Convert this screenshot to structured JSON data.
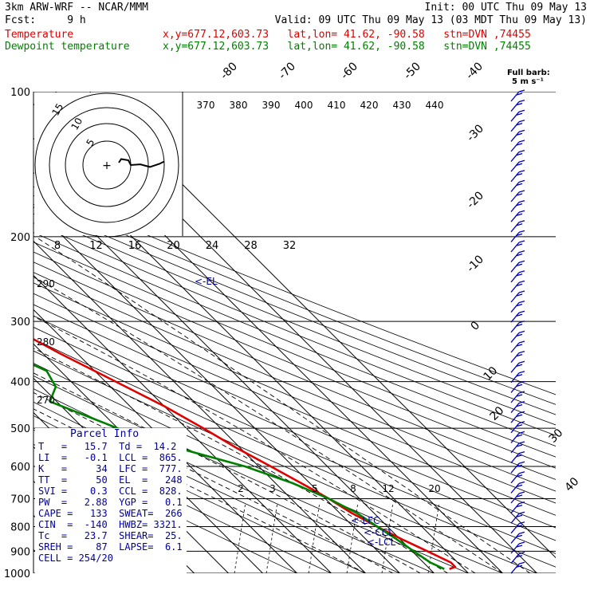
{
  "header": {
    "line1_left": "3km ARW-WRF -- NCAR/MMM",
    "line1_right": "Init: 00 UTC Thu 09 May 13",
    "line2_left": "Fcst:     9 h",
    "line2_right": "Valid: 09 UTC Thu 09 May 13 (03 MDT Thu 09 May 13)",
    "temp_label": "Temperature",
    "temp_info": "x,y=677.12,603.73   lat,lon= 41.62, -90.58   stn=DVN ,74455",
    "dew_label": "Dewpoint temperature",
    "dew_info": "x,y=677.12,603.73   lat,lon= 41.62, -90.58   stn=DVN ,74455"
  },
  "colors": {
    "temperature": "#e00000",
    "dewpoint": "#008000",
    "isobar": "#000000",
    "skew_isotherm": "#000000",
    "parcel_text": "#0000a0",
    "barbs": "#0000c0",
    "hodograph": "#000000"
  },
  "chart_data": {
    "type": "skew-t",
    "pressure_levels": [
      100,
      200,
      300,
      400,
      500,
      600,
      700,
      800,
      900,
      1000
    ],
    "temperature_ticks": [
      -80,
      -70,
      -60,
      -50,
      -40,
      -30,
      -20,
      -10,
      0,
      10,
      20,
      30,
      40
    ],
    "theta_e_labels": [
      370,
      380,
      390,
      400,
      410,
      420,
      430,
      440
    ],
    "side_theta_labels": [
      290,
      280,
      270
    ],
    "mixing_ratio_labels": [
      "2",
      "3",
      "5",
      "8",
      "12",
      "20"
    ],
    "wind_speed_ticks": [
      "8",
      "12",
      "16",
      "20",
      "24",
      "28",
      "32"
    ],
    "wind_speed_units": "kts",
    "barb_legend": "Full barb:\n5 m s⁻¹",
    "hodograph_rings": [
      "15",
      "10",
      "5"
    ],
    "level_markers": [
      "<-EL",
      "<-LFC",
      "<-CCL",
      "<-LCL"
    ],
    "temperature_profile": [
      {
        "p": 100,
        "t": -58.5
      },
      {
        "p": 120,
        "t": -59.5
      },
      {
        "p": 140,
        "t": -61
      },
      {
        "p": 160,
        "t": -60.5
      },
      {
        "p": 180,
        "t": -57
      },
      {
        "p": 200,
        "t": -55
      },
      {
        "p": 220,
        "t": -54.5
      },
      {
        "p": 250,
        "t": -50
      },
      {
        "p": 300,
        "t": -43
      },
      {
        "p": 350,
        "t": -35
      },
      {
        "p": 400,
        "t": -27
      },
      {
        "p": 450,
        "t": -20
      },
      {
        "p": 500,
        "t": -15
      },
      {
        "p": 550,
        "t": -11
      },
      {
        "p": 600,
        "t": -6.5
      },
      {
        "p": 650,
        "t": -2.5
      },
      {
        "p": 700,
        "t": 1
      },
      {
        "p": 750,
        "t": 3.5
      },
      {
        "p": 800,
        "t": 7
      },
      {
        "p": 850,
        "t": 10.5
      },
      {
        "p": 900,
        "t": 14.5
      },
      {
        "p": 950,
        "t": 18
      },
      {
        "p": 970,
        "t": 18
      },
      {
        "p": 980,
        "t": 15.7
      }
    ],
    "dewpoint_profile": [
      {
        "p": 100,
        "t": -87
      },
      {
        "p": 110,
        "t": -86
      },
      {
        "p": 130,
        "t": -80
      },
      {
        "p": 150,
        "t": -73
      },
      {
        "p": 170,
        "t": -71
      },
      {
        "p": 200,
        "t": -72
      },
      {
        "p": 230,
        "t": -73
      },
      {
        "p": 260,
        "t": -68
      },
      {
        "p": 300,
        "t": -60
      },
      {
        "p": 350,
        "t": -50
      },
      {
        "p": 380,
        "t": -44
      },
      {
        "p": 410,
        "t": -46
      },
      {
        "p": 440,
        "t": -52
      },
      {
        "p": 500,
        "t": -40
      },
      {
        "p": 550,
        "t": -28
      },
      {
        "p": 600,
        "t": -14
      },
      {
        "p": 650,
        "t": -5
      },
      {
        "p": 700,
        "t": 1
      },
      {
        "p": 750,
        "t": 5
      },
      {
        "p": 800,
        "t": 7
      },
      {
        "p": 850,
        "t": 9
      },
      {
        "p": 900,
        "t": 10.5
      },
      {
        "p": 950,
        "t": 12
      },
      {
        "p": 980,
        "t": 14.2
      }
    ],
    "hodograph_trace": [
      {
        "u": 5,
        "v": 1
      },
      {
        "u": 6,
        "v": 2.5
      },
      {
        "u": 9,
        "v": 2
      },
      {
        "u": 10,
        "v": 0
      },
      {
        "u": 14,
        "v": 0.3
      },
      {
        "u": 18,
        "v": -0.8
      },
      {
        "u": 22,
        "v": 0.5
      },
      {
        "u": 24,
        "v": 1.5
      }
    ]
  },
  "parcel": {
    "title": "Parcel Info",
    "lines": [
      "T   =   15.7  Td =  14.2",
      "LI  =   -0.1  LCL =  865.",
      "K   =     34  LFC =  777.",
      "TT  =     50  EL  =   248",
      "SVI =    0.3  CCL =  828.",
      "PW  =   2.88  YGP =   0.1",
      "CAPE =   133  SWEAT=  266",
      "CIN  =  -140  HWBZ= 3321.",
      "Tc  =   23.7  SHEAR=  25.",
      "SREH =    87  LAPSE=  6.1",
      "CELL = 254/20"
    ]
  }
}
